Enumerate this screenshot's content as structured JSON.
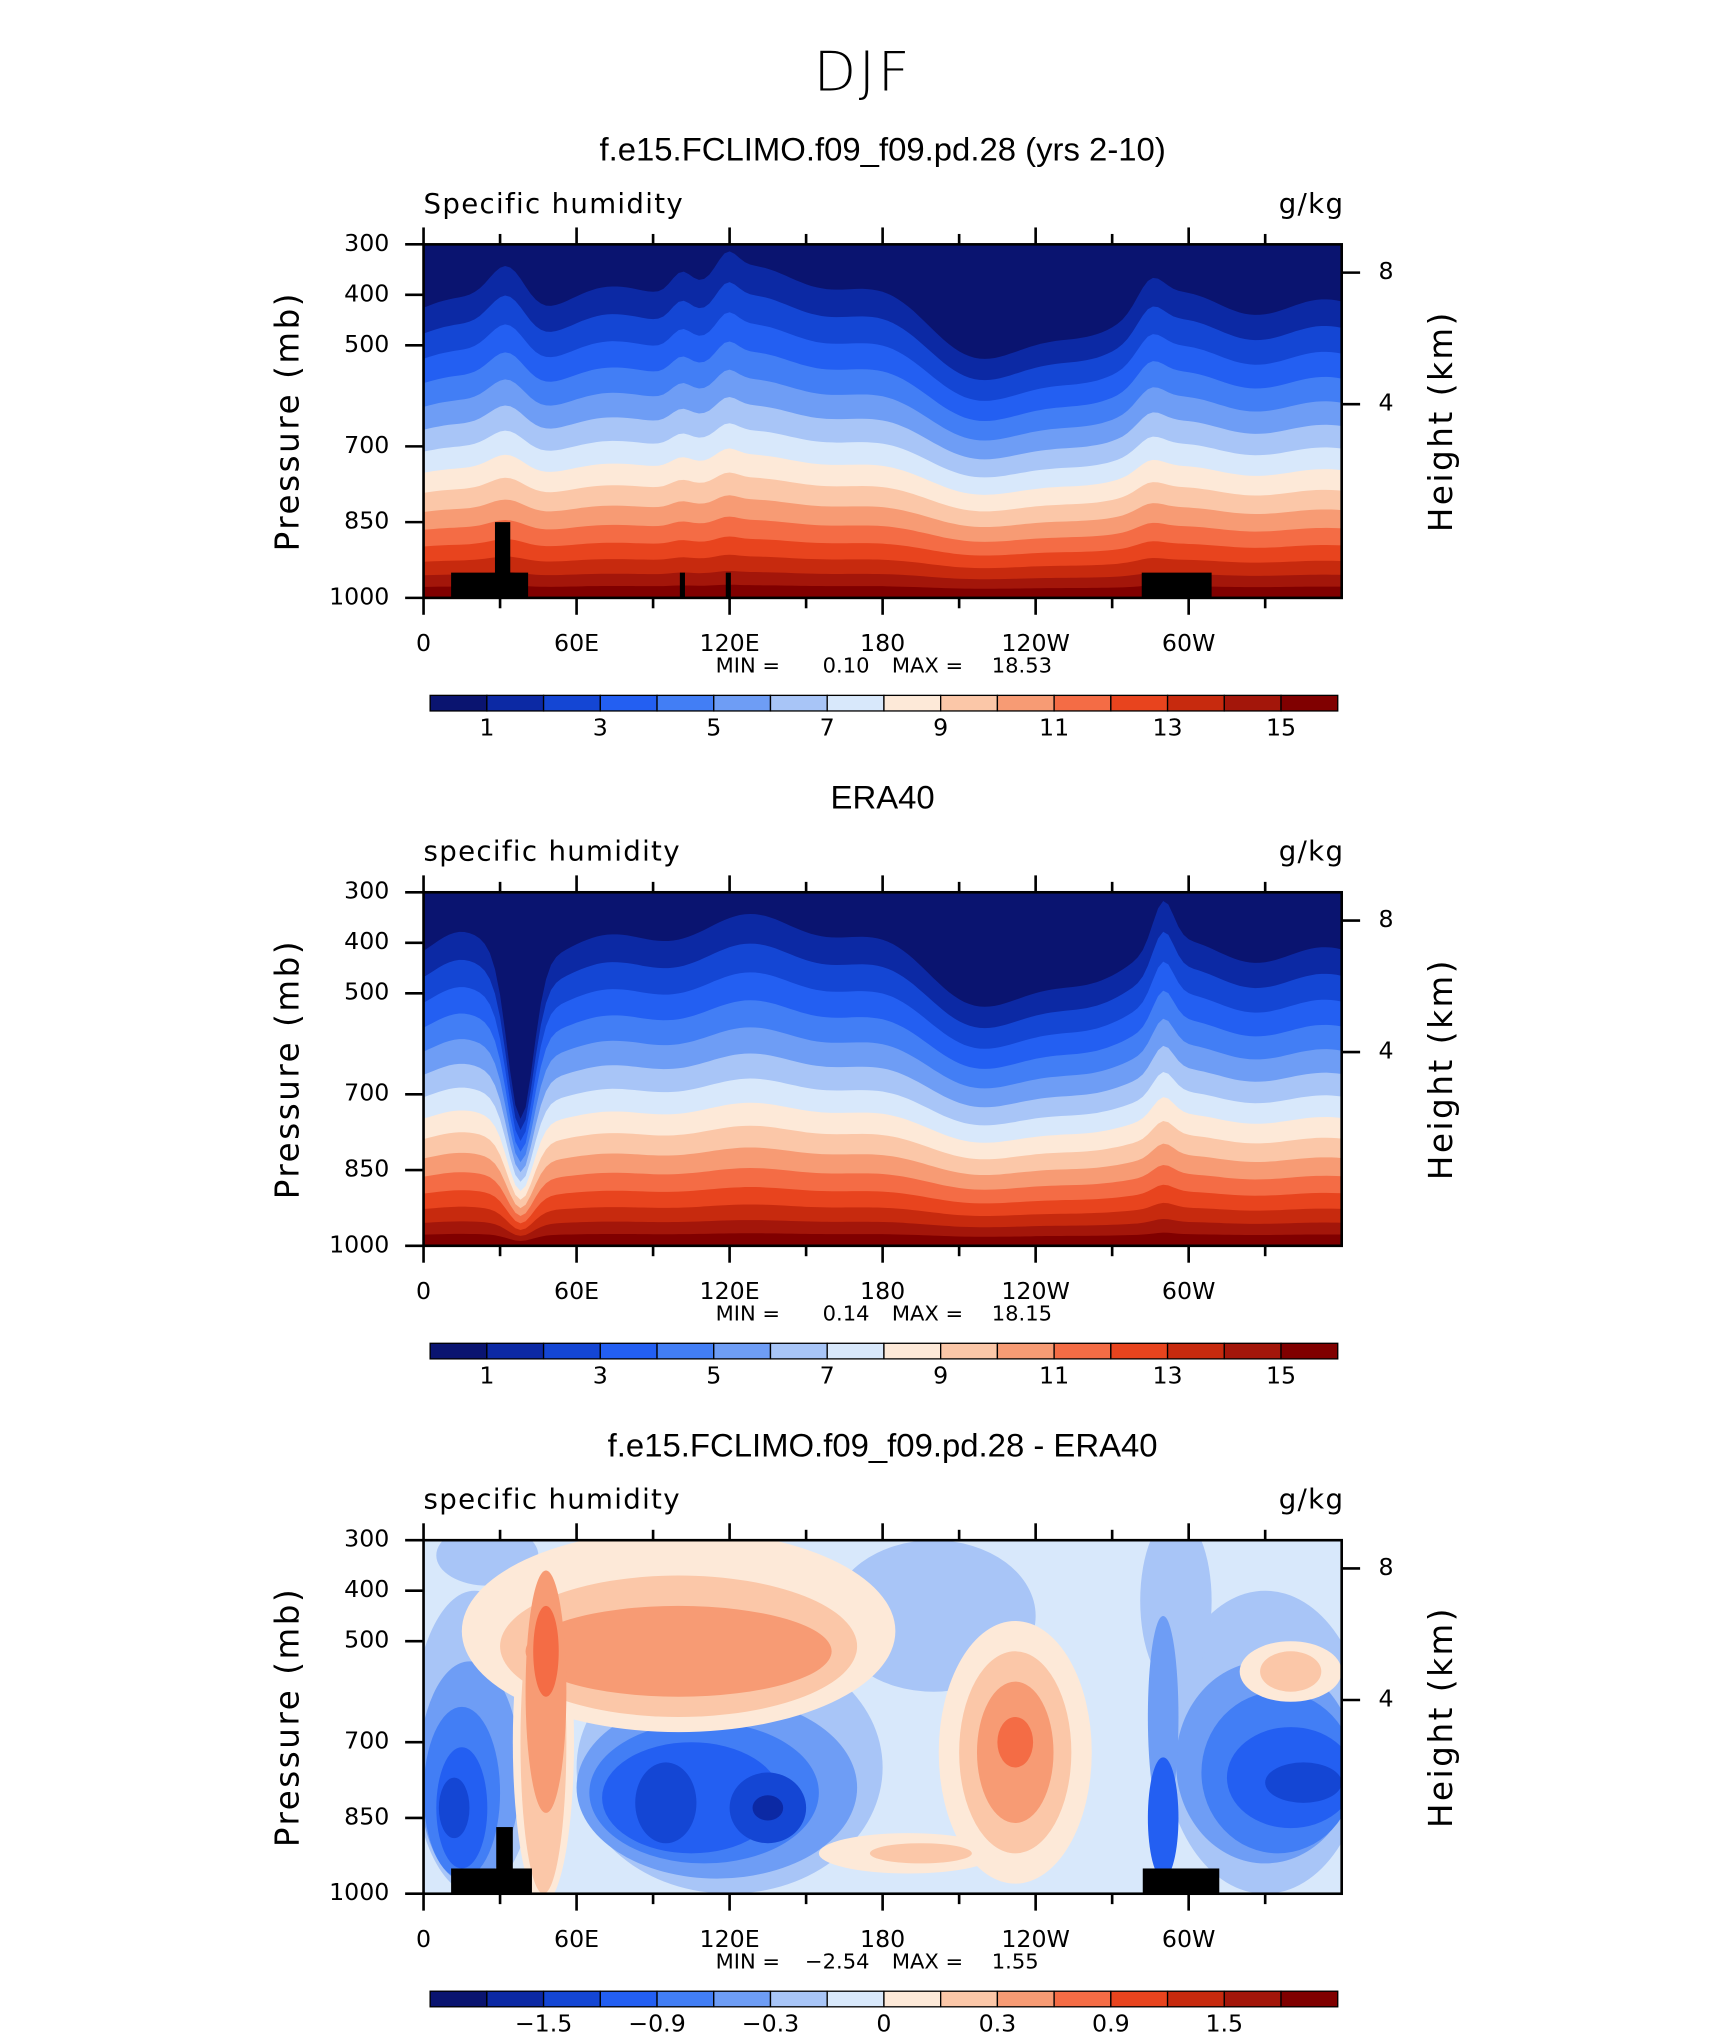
{
  "title": "DJF",
  "chart_data": [
    {
      "type": "contour",
      "title": "f.e15.FCLIMO.f09_f09.pd.28 (yrs 2-10)",
      "left_label": "Specific humidity",
      "right_label": "g/kg",
      "ylabel": "Pressure (mb)",
      "y2label": "Height (km)",
      "xlim": [
        0,
        360
      ],
      "xticks": [
        0,
        {
          "value": 60,
          "label": "60E"
        },
        {
          "value": 120,
          "label": "120E"
        },
        180,
        {
          "value": 240,
          "label": "120W"
        },
        {
          "value": 300,
          "label": "60W"
        }
      ],
      "xminorticks": [
        30,
        90,
        150,
        210,
        270,
        330
      ],
      "ylim": [
        1000,
        300
      ],
      "yticks": [
        300,
        400,
        500,
        700,
        850,
        1000
      ],
      "y2ticks": [
        8,
        4
      ],
      "min_text": "MIN =",
      "min": {
        "value": 0.1,
        "label": "0.10"
      },
      "max_text": "MAX =",
      "max": 18.53,
      "colorbar": {
        "colors": [
          "#0a1470",
          "#0c29a4",
          "#1446d4",
          "#235ff2",
          "#427ef5",
          "#6e9df5",
          "#a8c5f7",
          "#d8e8fb",
          "#fde9d8",
          "#fbc7a8",
          "#f79b74",
          "#f46c45",
          "#e8441e",
          "#c72a0e",
          "#a3160a",
          "#800000"
        ],
        "ticks": [
          1,
          3,
          5,
          7,
          9,
          11,
          13,
          15
        ]
      }
    },
    {
      "type": "contour",
      "title": "ERA40",
      "left_label": "specific humidity",
      "right_label": "g/kg",
      "ylabel": "Pressure (mb)",
      "y2label": "Height (km)",
      "xlim": [
        0,
        360
      ],
      "xticks": [
        0,
        {
          "value": 60,
          "label": "60E"
        },
        {
          "value": 120,
          "label": "120E"
        },
        180,
        {
          "value": 240,
          "label": "120W"
        },
        {
          "value": 300,
          "label": "60W"
        }
      ],
      "xminorticks": [
        30,
        90,
        150,
        210,
        270,
        330
      ],
      "ylim": [
        1000,
        300
      ],
      "yticks": [
        300,
        400,
        500,
        700,
        850,
        1000
      ],
      "y2ticks": [
        8,
        4
      ],
      "min_text": "MIN =",
      "min": 0.14,
      "max_text": "MAX =",
      "max": 18.15,
      "colorbar": {
        "colors": [
          "#0a1470",
          "#0c29a4",
          "#1446d4",
          "#235ff2",
          "#427ef5",
          "#6e9df5",
          "#a8c5f7",
          "#d8e8fb",
          "#fde9d8",
          "#fbc7a8",
          "#f79b74",
          "#f46c45",
          "#e8441e",
          "#c72a0e",
          "#a3160a",
          "#800000"
        ],
        "ticks": [
          1,
          3,
          5,
          7,
          9,
          11,
          13,
          15
        ]
      }
    },
    {
      "type": "contour",
      "title": "f.e15.FCLIMO.f09_f09.pd.28 - ERA40",
      "left_label": "specific humidity",
      "right_label": "g/kg",
      "ylabel": "Pressure (mb)",
      "y2label": "Height (km)",
      "xlim": [
        0,
        360
      ],
      "xticks": [
        0,
        {
          "value": 60,
          "label": "60E"
        },
        {
          "value": 120,
          "label": "120E"
        },
        180,
        {
          "value": 240,
          "label": "120W"
        },
        {
          "value": 300,
          "label": "60W"
        }
      ],
      "xminorticks": [
        30,
        90,
        150,
        210,
        270,
        330
      ],
      "ylim": [
        1000,
        300
      ],
      "yticks": [
        300,
        400,
        500,
        700,
        850,
        1000
      ],
      "y2ticks": [
        8,
        4
      ],
      "min_text": "MIN =",
      "min": {
        "value": -2.54,
        "label": "−2.54"
      },
      "max_text": "MAX =",
      "max": 1.55,
      "colorbar": {
        "colors": [
          "#0a1470",
          "#0c29a4",
          "#1446d4",
          "#235ff2",
          "#427ef5",
          "#6e9df5",
          "#a8c5f7",
          "#d8e8fb",
          "#fde9d8",
          "#fbc7a8",
          "#f79b74",
          "#f46c45",
          "#e8441e",
          "#c72a0e",
          "#a3160a",
          "#800000"
        ],
        "ticks": [
          {
            "value": -1.5,
            "label": "−1.5"
          },
          {
            "value": -0.9,
            "label": "−0.9"
          },
          {
            "value": -0.3,
            "label": "−0.3"
          },
          0,
          0.3,
          0.9,
          1.5
        ]
      }
    }
  ]
}
